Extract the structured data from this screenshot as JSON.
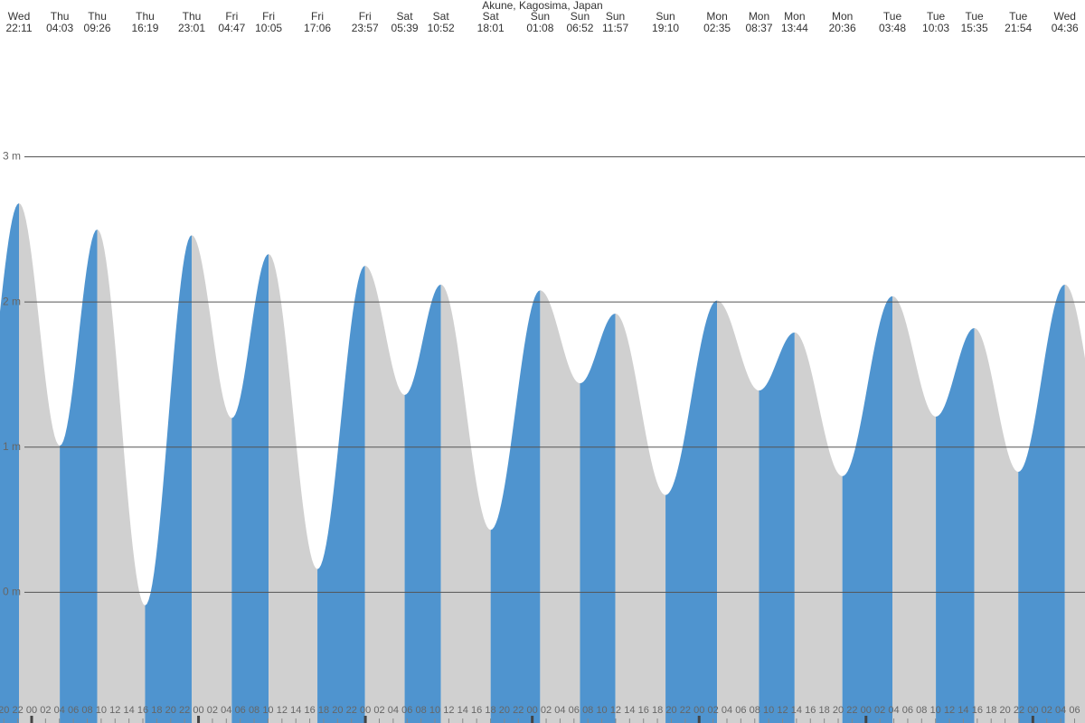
{
  "chart_data": {
    "type": "tide",
    "title": "Akune, Kagosima, Japan",
    "extremes": [
      {
        "day": "Wed",
        "time": "22:11",
        "height": 2.68
      },
      {
        "day": "Thu",
        "time": "04:03",
        "height": 1.01
      },
      {
        "day": "Thu",
        "time": "09:26",
        "height": 2.5
      },
      {
        "day": "Thu",
        "time": "16:19",
        "height": -0.09
      },
      {
        "day": "Thu",
        "time": "23:01",
        "height": 2.46
      },
      {
        "day": "Fri",
        "time": "04:47",
        "height": 1.2
      },
      {
        "day": "Fri",
        "time": "10:05",
        "height": 2.33
      },
      {
        "day": "Fri",
        "time": "17:06",
        "height": 0.16
      },
      {
        "day": "Fri",
        "time": "23:57",
        "height": 2.25
      },
      {
        "day": "Sat",
        "time": "05:39",
        "height": 1.36
      },
      {
        "day": "Sat",
        "time": "10:52",
        "height": 2.12
      },
      {
        "day": "Sat",
        "time": "18:01",
        "height": 0.43
      },
      {
        "day": "Sun",
        "time": "01:08",
        "height": 2.08
      },
      {
        "day": "Sun",
        "time": "06:52",
        "height": 1.44
      },
      {
        "day": "Sun",
        "time": "11:57",
        "height": 1.92
      },
      {
        "day": "Sun",
        "time": "19:10",
        "height": 0.67
      },
      {
        "day": "Mon",
        "time": "02:35",
        "height": 2.01
      },
      {
        "day": "Mon",
        "time": "08:37",
        "height": 1.39
      },
      {
        "day": "Mon",
        "time": "13:44",
        "height": 1.79
      },
      {
        "day": "Mon",
        "time": "20:36",
        "height": 0.8
      },
      {
        "day": "Tue",
        "time": "03:48",
        "height": 2.04
      },
      {
        "day": "Tue",
        "time": "10:03",
        "height": 1.21
      },
      {
        "day": "Tue",
        "time": "15:35",
        "height": 1.82
      },
      {
        "day": "Tue",
        "time": "21:54",
        "height": 0.83
      },
      {
        "day": "Wed",
        "time": "04:36",
        "height": 2.12
      }
    ],
    "rising_color": "#4f94cf",
    "falling_color": "#d0d0d0",
    "ylim": [
      -0.9,
      4.08
    ],
    "yticks": [
      {
        "value": 0,
        "label": "0 m"
      },
      {
        "value": 1,
        "label": "1 m"
      },
      {
        "value": 2,
        "label": "2 m"
      },
      {
        "value": 3,
        "label": "3 m"
      }
    ],
    "grid": true,
    "xticks": [
      "20",
      "22",
      "00",
      "02",
      "04",
      "06",
      "08",
      "10",
      "12",
      "14",
      "16",
      "18",
      "20",
      "22",
      "00",
      "02",
      "04",
      "06",
      "08",
      "10",
      "12",
      "14",
      "16",
      "18",
      "20",
      "22",
      "00",
      "02",
      "04",
      "06",
      "08",
      "10",
      "12",
      "14",
      "16",
      "18",
      "20",
      "22",
      "00",
      "02",
      "04",
      "06",
      "08",
      "10",
      "12",
      "14",
      "16",
      "18",
      "20",
      "22",
      "00",
      "02",
      "04",
      "06",
      "08",
      "10",
      "12",
      "14",
      "16",
      "18",
      "20",
      "22",
      "00",
      "02",
      "04",
      "06",
      "08",
      "10",
      "12",
      "14",
      "16",
      "18",
      "20",
      "22",
      "00",
      "02",
      "04",
      "06"
    ]
  }
}
